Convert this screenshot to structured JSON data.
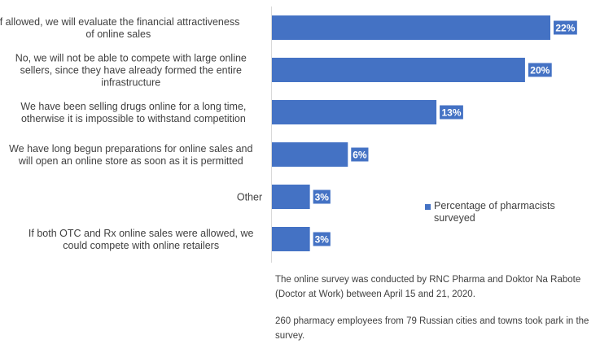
{
  "chart_data": {
    "type": "bar",
    "orientation": "horizontal",
    "categories": [
      [
        "If allowed, we will evaluate the financial attractiveness",
        "of online sales"
      ],
      [
        "No, we will not be able to compete with large online",
        "sellers, since they have already formed the entire",
        "infrastructure"
      ],
      [
        "We have been selling drugs online for a long time,",
        "otherwise it is impossible to withstand competition"
      ],
      [
        "We have long begun preparations for online sales and",
        "will open an online store as soon as it is permitted"
      ],
      [
        "Other"
      ],
      [
        "If both OTC and Rx online sales were allowed, we",
        "could compete with online retailers"
      ]
    ],
    "series": [
      {
        "name": "Percentage of  pharmacists surveyed",
        "values": [
          22,
          20,
          13,
          6,
          3,
          3
        ]
      }
    ],
    "value_suffix": "%",
    "xlim": [
      0,
      22
    ],
    "grid": false,
    "legend_position": "right",
    "colors": {
      "bar": "#4472C4",
      "label_box": "#4472C4",
      "axis": "#d9d9d9"
    }
  },
  "legend": {
    "label_line1": "Percentage of  pharmacists",
    "label_line2": "surveyed"
  },
  "notes": {
    "note1": "The online survey was conducted by RNC Pharma and Doktor Na Rabote (Doctor at Work) between April 15 and 21, 2020.",
    "note2": "260 pharmacy employees from 79 Russian cities and towns took park in the survey."
  }
}
